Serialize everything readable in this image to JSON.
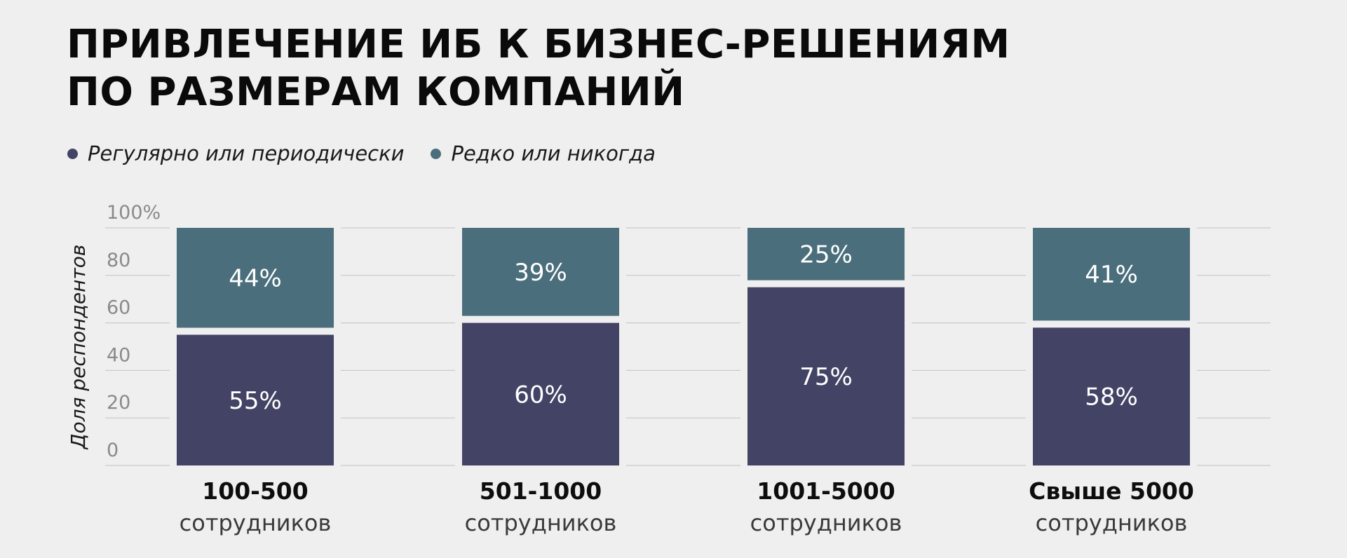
{
  "title_lines": [
    "ПРИВЛЕЧЕНИЕ ИБ К БИЗНЕС-РЕШЕНИЯМ",
    "ПО РАЗМЕРАМ КОМПАНИЙ"
  ],
  "legend": [
    {
      "label": "Регулярно или периодически",
      "color": "#434365"
    },
    {
      "label": "Редко или никогда",
      "color": "#4a6e7b"
    }
  ],
  "chart_data": {
    "type": "bar",
    "stacked": true,
    "title": "ПРИВЛЕЧЕНИЕ ИБ К БИЗНЕС-РЕШЕНИЯМ ПО РАЗМЕРАМ КОМПАНИЙ",
    "categories": [
      "100-500",
      "501-1000",
      "1001-5000",
      "Свыше 5000"
    ],
    "category_sublabel": "сотрудников",
    "series": [
      {
        "name": "Регулярно или периодически",
        "values": [
          55,
          60,
          75,
          58
        ],
        "labels": [
          "55%",
          "60%",
          "75%",
          "58%"
        ],
        "color": "#434365"
      },
      {
        "name": "Редко или никогда",
        "values": [
          44,
          39,
          25,
          41
        ],
        "labels": [
          "44%",
          "39%",
          "25%",
          "41%"
        ],
        "color": "#4a6e7b"
      }
    ],
    "ylabel": "Доля респондентов",
    "yticks": [
      "0",
      "20",
      "40",
      "60",
      "80",
      "100%"
    ],
    "ylim": [
      0,
      100
    ],
    "grid": true,
    "legend_position": "top-left"
  }
}
